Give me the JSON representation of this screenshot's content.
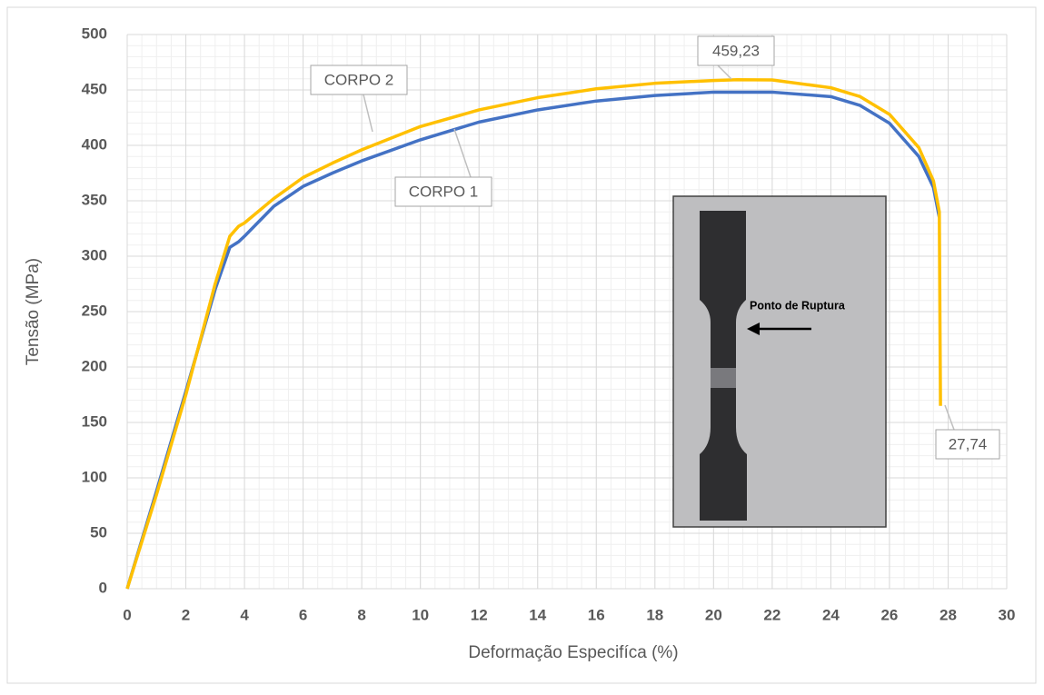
{
  "chart_data": {
    "type": "line",
    "xlabel": "Deformação Especifíca (%)",
    "ylabel": "Tensão (MPa)",
    "x": [
      0,
      1,
      2,
      3,
      3.5,
      3.8,
      4,
      5,
      6,
      7,
      8,
      10,
      12,
      14,
      16,
      18,
      20,
      20.8,
      22,
      24,
      25,
      26,
      27,
      27.5,
      27.7,
      27.72,
      27.74
    ],
    "series": [
      {
        "name": "CORPO 1",
        "color": "#4472c4",
        "values": [
          0,
          88,
          178,
          270,
          308,
          313,
          318,
          345,
          363,
          375,
          386,
          405,
          421,
          432,
          440,
          445,
          448,
          448,
          448,
          444,
          436,
          420,
          390,
          362,
          335,
          null,
          null
        ]
      },
      {
        "name": "CORPO 2",
        "color": "#ffc000",
        "values": [
          0,
          85,
          175,
          275,
          318,
          327,
          330,
          352,
          371,
          384,
          396,
          417,
          432,
          443,
          451,
          456,
          458.5,
          459.23,
          459,
          452,
          444,
          428,
          398,
          368,
          340,
          250,
          165
        ]
      }
    ],
    "annotations": [
      "459,23",
      "27,74"
    ],
    "inset_label": "Ponto de Ruptura",
    "xlim": [
      0,
      30
    ],
    "xticks": [
      0,
      2,
      4,
      6,
      8,
      10,
      12,
      14,
      16,
      18,
      20,
      22,
      24,
      26,
      28,
      30
    ],
    "ylim": [
      0,
      500
    ],
    "yticks": [
      0,
      50,
      100,
      150,
      200,
      250,
      300,
      350,
      400,
      450,
      500
    ],
    "grid": true,
    "xminor": 0.5,
    "yminor": 10
  }
}
